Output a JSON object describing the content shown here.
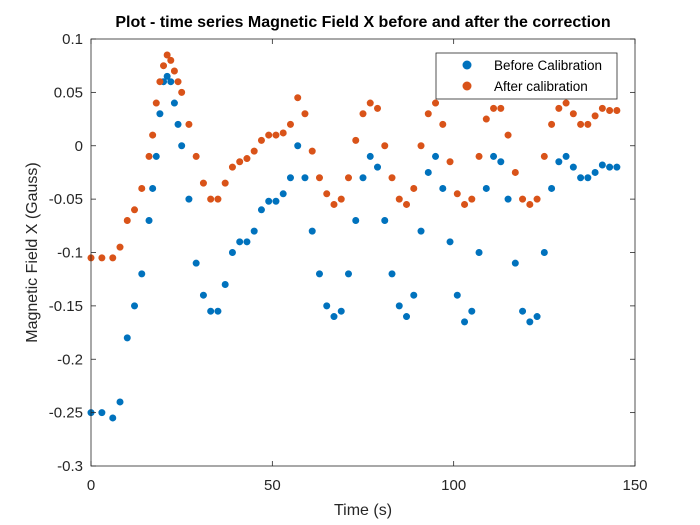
{
  "chart_data": {
    "type": "scatter",
    "title": "Plot - time series Magnetic Field X  before and after the correction",
    "xlabel": "Time (s)",
    "ylabel": "Magnetic Field X (Gauss)",
    "xlim": [
      0,
      150
    ],
    "ylim": [
      -0.3,
      0.1
    ],
    "xticks": [
      0,
      50,
      100,
      150
    ],
    "xtick_labels": [
      "0",
      "50",
      "100",
      "150"
    ],
    "yticks": [
      -0.3,
      -0.25,
      -0.2,
      -0.15,
      -0.1,
      -0.05,
      0,
      0.05,
      0.1
    ],
    "ytick_labels": [
      "-0.3",
      "-0.25",
      "-0.2",
      "-0.15",
      "-0.1",
      "-0.05",
      "0",
      "0.05",
      "0.1"
    ],
    "grid": false,
    "legend_position": "top-right",
    "series": [
      {
        "name": "Before Calibration",
        "color": "#0072BD",
        "x": [
          0,
          3,
          6,
          8,
          10,
          12,
          14,
          16,
          17,
          18,
          19,
          20,
          21,
          22,
          23,
          24,
          25,
          27,
          29,
          31,
          33,
          35,
          37,
          39,
          41,
          43,
          45,
          47,
          49,
          51,
          53,
          55,
          57,
          59,
          61,
          63,
          65,
          67,
          69,
          71,
          73,
          75,
          77,
          79,
          81,
          83,
          85,
          87,
          89,
          91,
          93,
          95,
          97,
          99,
          101,
          103,
          105,
          107,
          109,
          111,
          113,
          115,
          117,
          119,
          121,
          123,
          125,
          127,
          129,
          131,
          133,
          135,
          137,
          139,
          141,
          143,
          145
        ],
        "y": [
          -0.25,
          -0.25,
          -0.255,
          -0.24,
          -0.18,
          -0.15,
          -0.12,
          -0.07,
          -0.04,
          -0.01,
          0.03,
          0.06,
          0.065,
          0.06,
          0.04,
          0.02,
          0.0,
          -0.05,
          -0.11,
          -0.14,
          -0.155,
          -0.155,
          -0.13,
          -0.1,
          -0.09,
          -0.09,
          -0.08,
          -0.06,
          -0.052,
          -0.052,
          -0.045,
          -0.03,
          0.0,
          -0.03,
          -0.08,
          -0.12,
          -0.15,
          -0.16,
          -0.155,
          -0.12,
          -0.07,
          -0.03,
          -0.01,
          -0.02,
          -0.07,
          -0.12,
          -0.15,
          -0.16,
          -0.14,
          -0.08,
          -0.025,
          -0.01,
          -0.04,
          -0.09,
          -0.14,
          -0.165,
          -0.155,
          -0.1,
          -0.04,
          -0.01,
          -0.015,
          -0.05,
          -0.11,
          -0.155,
          -0.165,
          -0.16,
          -0.1,
          -0.04,
          -0.015,
          -0.01,
          -0.02,
          -0.03,
          -0.03,
          -0.025,
          -0.018,
          -0.02,
          -0.02
        ]
      },
      {
        "name": "After calibration",
        "color": "#D95319",
        "x": [
          0,
          3,
          6,
          8,
          10,
          12,
          14,
          16,
          17,
          18,
          19,
          20,
          21,
          22,
          23,
          24,
          25,
          27,
          29,
          31,
          33,
          35,
          37,
          39,
          41,
          43,
          45,
          47,
          49,
          51,
          53,
          55,
          57,
          59,
          61,
          63,
          65,
          67,
          69,
          71,
          73,
          75,
          77,
          79,
          81,
          83,
          85,
          87,
          89,
          91,
          93,
          95,
          97,
          99,
          101,
          103,
          105,
          107,
          109,
          111,
          113,
          115,
          117,
          119,
          121,
          123,
          125,
          127,
          129,
          131,
          133,
          135,
          137,
          139,
          141,
          143,
          145
        ],
        "y": [
          -0.105,
          -0.105,
          -0.105,
          -0.095,
          -0.07,
          -0.06,
          -0.04,
          -0.01,
          0.01,
          0.04,
          0.06,
          0.075,
          0.085,
          0.08,
          0.07,
          0.06,
          0.05,
          0.02,
          -0.01,
          -0.035,
          -0.05,
          -0.05,
          -0.035,
          -0.02,
          -0.015,
          -0.012,
          -0.005,
          0.005,
          0.01,
          0.01,
          0.012,
          0.02,
          0.045,
          0.03,
          -0.005,
          -0.03,
          -0.045,
          -0.055,
          -0.05,
          -0.03,
          0.005,
          0.03,
          0.04,
          0.035,
          0.0,
          -0.03,
          -0.05,
          -0.055,
          -0.04,
          0.0,
          0.03,
          0.04,
          0.02,
          -0.015,
          -0.045,
          -0.055,
          -0.05,
          -0.01,
          0.025,
          0.035,
          0.035,
          0.01,
          -0.025,
          -0.05,
          -0.055,
          -0.05,
          -0.01,
          0.02,
          0.035,
          0.04,
          0.03,
          0.02,
          0.02,
          0.028,
          0.035,
          0.033,
          0.033
        ]
      }
    ]
  }
}
